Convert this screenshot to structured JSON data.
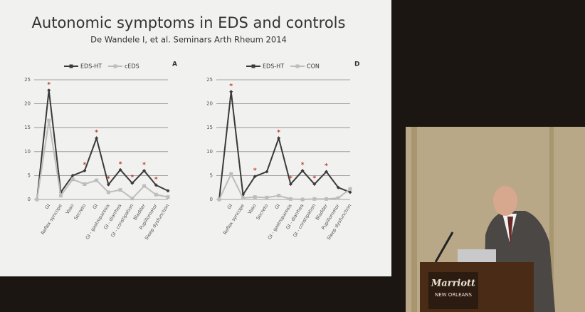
{
  "slide": {
    "title": "Autonomic symptoms in EDS and controls",
    "subtitle": "De Wandele I, et al. Seminars Arth Rheum 2014"
  },
  "scene": {
    "podium_brand": "Marriott",
    "podium_location": "NEW ORLEANS"
  },
  "chart_data": [
    {
      "type": "line",
      "panel": "A",
      "categories": [
        null,
        "GI",
        "Reflex syncope",
        "Vaso",
        "Secreto",
        "GI",
        "GI - gastroparesis",
        "GI - diarrhea",
        "GI - constipation",
        "Bladder",
        "Pupillomotor",
        "Sleep dysfunction"
      ],
      "series": [
        {
          "name": "EDS-HT",
          "color": "#3a3a3a",
          "values": [
            0,
            22.8,
            1.5,
            5,
            6,
            12.8,
            3.1,
            6.2,
            3.4,
            6,
            3,
            1.8
          ]
        },
        {
          "name": "cEDS",
          "color": "#bdbdbd",
          "values": [
            0,
            16.5,
            0.8,
            4.2,
            3.2,
            4,
            1.5,
            2,
            0.2,
            2.8,
            1,
            0.5
          ]
        }
      ],
      "significance_label": "*",
      "significant": [
        false,
        true,
        false,
        false,
        true,
        true,
        true,
        true,
        true,
        true,
        true,
        false
      ],
      "ylim": [
        0,
        25
      ],
      "yticks": [
        0,
        5,
        10,
        15,
        20,
        25
      ],
      "grid": true
    },
    {
      "type": "line",
      "panel": "D",
      "categories": [
        null,
        "GI",
        "Reflex syncope",
        "Vaso",
        "Secreto",
        "GI",
        "GI - gastroparesis",
        "GI - diarrhea",
        "GI - constipation",
        "Bladder",
        "Pupillomotor",
        "Sleep dysfunction"
      ],
      "series": [
        {
          "name": "EDS-HT",
          "color": "#3a3a3a",
          "values": [
            0,
            22.5,
            1,
            4.8,
            5.8,
            12.8,
            3.2,
            6,
            3.2,
            5.8,
            2.5,
            1.5
          ]
        },
        {
          "name": "CON",
          "color": "#bdbdbd",
          "values": [
            0,
            5.3,
            0.3,
            0.5,
            0.4,
            0.8,
            0.1,
            0,
            0.1,
            0.1,
            0.3,
            2.2
          ]
        }
      ],
      "significance_label": "*",
      "significant": [
        false,
        true,
        false,
        true,
        false,
        true,
        true,
        true,
        true,
        true,
        false,
        false
      ],
      "ylim": [
        0,
        25
      ],
      "yticks": [
        0,
        5,
        10,
        15,
        20,
        25
      ],
      "grid": true
    }
  ]
}
